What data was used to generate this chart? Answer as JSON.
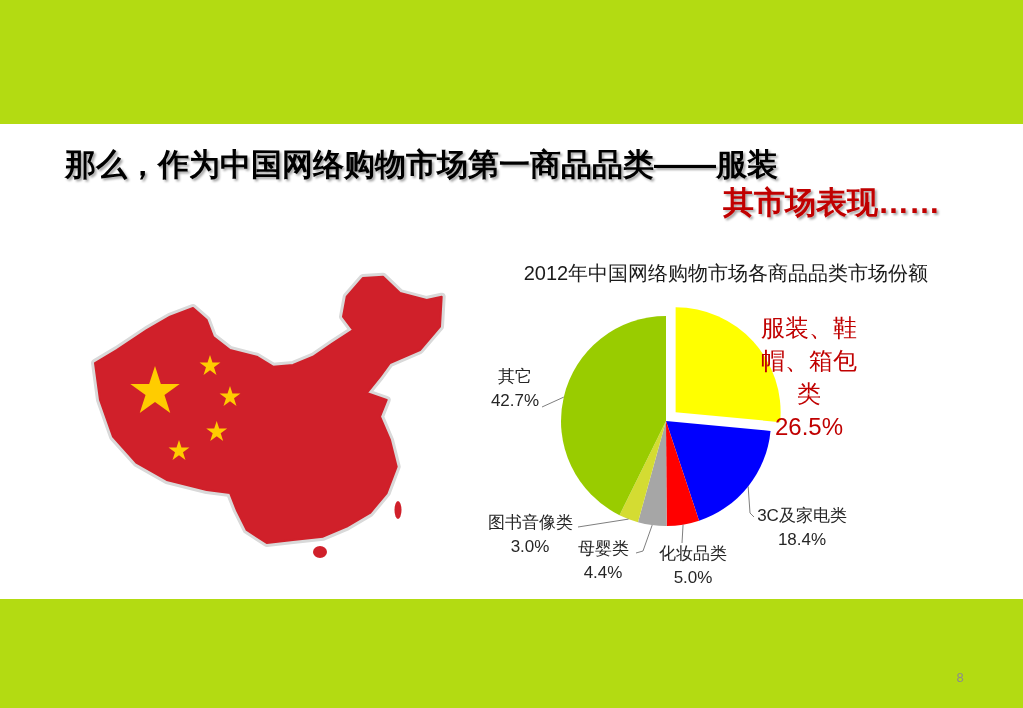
{
  "chart_data": {
    "type": "pie",
    "title": "2012年中国网络购物市场各商品品类市场份额",
    "categories": [
      "服装、鞋帽、箱包类",
      "3C及家电类",
      "化妆品类",
      "母婴类",
      "图书音像类",
      "其它"
    ],
    "values": [
      26.5,
      18.4,
      5.0,
      4.4,
      3.0,
      42.7
    ],
    "colors": [
      "#ffff00",
      "#0000ff",
      "#ff0000",
      "#a6a6a6",
      "#d4dc32",
      "#99cc00"
    ],
    "value_labels": [
      "26.5%",
      "18.4%",
      "5.0%",
      "4.4%",
      "3.0%",
      "42.7%"
    ],
    "annotations": [
      "那么，作为中国网络购物市场第一商品品类——服装",
      "其市场表现……",
      "8"
    ]
  }
}
